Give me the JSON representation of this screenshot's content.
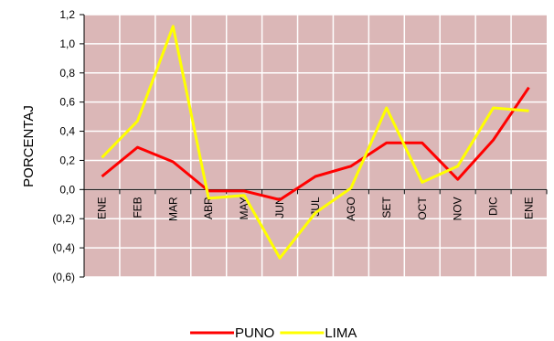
{
  "chart_data": {
    "type": "line",
    "title": "",
    "xlabel": "",
    "ylabel": "PORCENTAJ",
    "categories": [
      "ENE",
      "FEB",
      "MAR",
      "ABR",
      "MAY",
      "JUN",
      "JUL",
      "AGO",
      "SET",
      "OCT",
      "NOV",
      "DIC",
      "ENE"
    ],
    "y_tick_labels": [
      "1,2",
      "1,0",
      "0,8",
      "0,6",
      "0,4",
      "0,2",
      "0,0",
      "(0,2)",
      "(0,4)",
      "(0,6)"
    ],
    "y_ticks": [
      1.2,
      1.0,
      0.8,
      0.6,
      0.4,
      0.2,
      0.0,
      -0.2,
      -0.4,
      -0.6
    ],
    "ylim": [
      -0.6,
      1.2
    ],
    "grid": true,
    "legend_position": "bottom-center",
    "plot_background": "#dbb7b7",
    "grid_color": "#ffffff",
    "series": [
      {
        "name": "PUNO",
        "color": "#ff0000",
        "values": [
          0.09,
          0.29,
          0.19,
          -0.01,
          -0.01,
          -0.07,
          0.09,
          0.16,
          0.32,
          0.32,
          0.07,
          0.34,
          0.7
        ]
      },
      {
        "name": "LIMA",
        "color": "#ffff00",
        "values": [
          0.22,
          0.47,
          1.12,
          -0.06,
          -0.04,
          -0.47,
          -0.16,
          0.01,
          0.56,
          0.05,
          0.16,
          0.56,
          0.54
        ]
      }
    ]
  }
}
